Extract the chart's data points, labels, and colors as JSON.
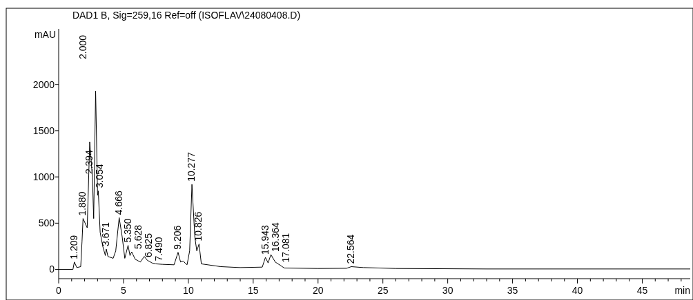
{
  "chart_data": {
    "type": "line",
    "title": "DAD1 B, Sig=259,16 Ref=off (ISOFLAV\\24080408.D)",
    "xlabel": "min",
    "ylabel": "mAU",
    "x": [
      0,
      1.1,
      1.209,
      1.4,
      1.7,
      1.8,
      1.88,
      1.95,
      2.05,
      2.2,
      2.394,
      2.6,
      2.7,
      2.85,
      3.0,
      3.054,
      3.2,
      3.4,
      3.6,
      3.671,
      3.8,
      4.2,
      4.4,
      4.666,
      4.9,
      5.1,
      5.35,
      5.5,
      5.628,
      5.9,
      6.3,
      6.6,
      6.825,
      7.2,
      7.49,
      8.0,
      8.9,
      9.206,
      9.4,
      9.6,
      9.9,
      10.1,
      10.277,
      10.5,
      10.65,
      10.826,
      11.0,
      11.5,
      12.5,
      14,
      15.7,
      15.943,
      16.15,
      16.364,
      16.7,
      17.081,
      17.4,
      20,
      22.2,
      22.564,
      23.5,
      26,
      33,
      48.7
    ],
    "series": [
      {
        "color": "#000000",
        "values": [
          0,
          0,
          80,
          20,
          30,
          300,
          550,
          null,
          null,
          450,
          1380,
          1000,
          550,
          1930,
          800,
          850,
          400,
          250,
          150,
          220,
          140,
          120,
          200,
          560,
          350,
          120,
          260,
          150,
          190,
          110,
          80,
          140,
          100,
          70,
          60,
          55,
          50,
          185,
          80,
          90,
          50,
          200,
          920,
          350,
          200,
          275,
          60,
          50,
          30,
          20,
          25,
          130,
          70,
          160,
          80,
          45,
          15,
          10,
          12,
          30,
          20,
          10,
          5,
          5
        ]
      }
    ],
    "xlim": [
      0,
      48.7
    ],
    "ylim": [
      -100,
      2600
    ],
    "xticks": [
      0,
      {
        "value": 1,
        "label": null
      },
      {
        "value": 2,
        "label": null
      },
      {
        "value": 3,
        "label": null
      },
      {
        "value": 4,
        "label": null
      },
      5,
      {
        "value": 6,
        "label": null
      },
      {
        "value": 7,
        "label": null
      },
      {
        "value": 8,
        "label": null
      },
      {
        "value": 9,
        "label": null
      },
      10,
      {
        "value": 11,
        "label": null
      },
      {
        "value": 12,
        "label": null
      },
      {
        "value": 13,
        "label": null
      },
      {
        "value": 14,
        "label": null
      },
      15,
      {
        "value": 16,
        "label": null
      },
      {
        "value": 17,
        "label": null
      },
      {
        "value": 18,
        "label": null
      },
      {
        "value": 19,
        "label": null
      },
      20,
      {
        "value": 21,
        "label": null
      },
      {
        "value": 22,
        "label": null
      },
      {
        "value": 23,
        "label": null
      },
      {
        "value": 24,
        "label": null
      },
      25,
      {
        "value": 26,
        "label": null
      },
      {
        "value": 27,
        "label": null
      },
      {
        "value": 28,
        "label": null
      },
      {
        "value": 29,
        "label": null
      },
      30,
      {
        "value": 31,
        "label": null
      },
      {
        "value": 32,
        "label": null
      },
      {
        "value": 33,
        "label": null
      },
      {
        "value": 34,
        "label": null
      },
      35,
      {
        "value": 36,
        "label": null
      },
      {
        "value": 37,
        "label": null
      },
      {
        "value": 38,
        "label": null
      },
      {
        "value": 39,
        "label": null
      },
      40,
      {
        "value": 41,
        "label": null
      },
      {
        "value": 42,
        "label": null
      },
      {
        "value": 43,
        "label": null
      },
      {
        "value": 44,
        "label": null
      },
      45,
      {
        "value": 46,
        "label": null
      },
      {
        "value": 47,
        "label": null
      },
      {
        "value": 48,
        "label": null
      }
    ],
    "yticks": [
      0,
      500,
      1000,
      1500,
      2000
    ],
    "annotations": [
      {
        "text": "1.209",
        "x": 1.209,
        "y": 80
      },
      {
        "text": "1.880",
        "x": 1.88,
        "y": 550
      },
      "2.000",
      {
        "text": "2.394",
        "x": 2.394,
        "y": 1000
      },
      {
        "text": "3.054",
        "x": 3.054,
        "y": 850
      },
      {
        "text": "3.671",
        "x": 3.671,
        "y": 220
      },
      {
        "text": "4.666",
        "x": 4.666,
        "y": 560
      },
      {
        "text": "5.350",
        "x": 5.35,
        "y": 260
      },
      {
        "text": "5.628",
        "x": 5.628,
        "y": 190
      },
      {
        "text": "6.825",
        "x": 6.825,
        "y": 100
      },
      {
        "text": "7.490",
        "x": 7.49,
        "y": 60
      },
      {
        "text": "9.206",
        "x": 9.206,
        "y": 185
      },
      {
        "text": "10.277",
        "x": 10.277,
        "y": 920
      },
      {
        "text": "10.826",
        "x": 10.826,
        "y": 275
      },
      {
        "text": "15.943",
        "x": 15.943,
        "y": 130
      },
      {
        "text": "16.364",
        "x": 16.364,
        "y": 160
      },
      {
        "text": "17.081",
        "x": 17.081,
        "y": 45
      },
      {
        "text": "22.564",
        "x": 22.564,
        "y": 30
      }
    ]
  }
}
